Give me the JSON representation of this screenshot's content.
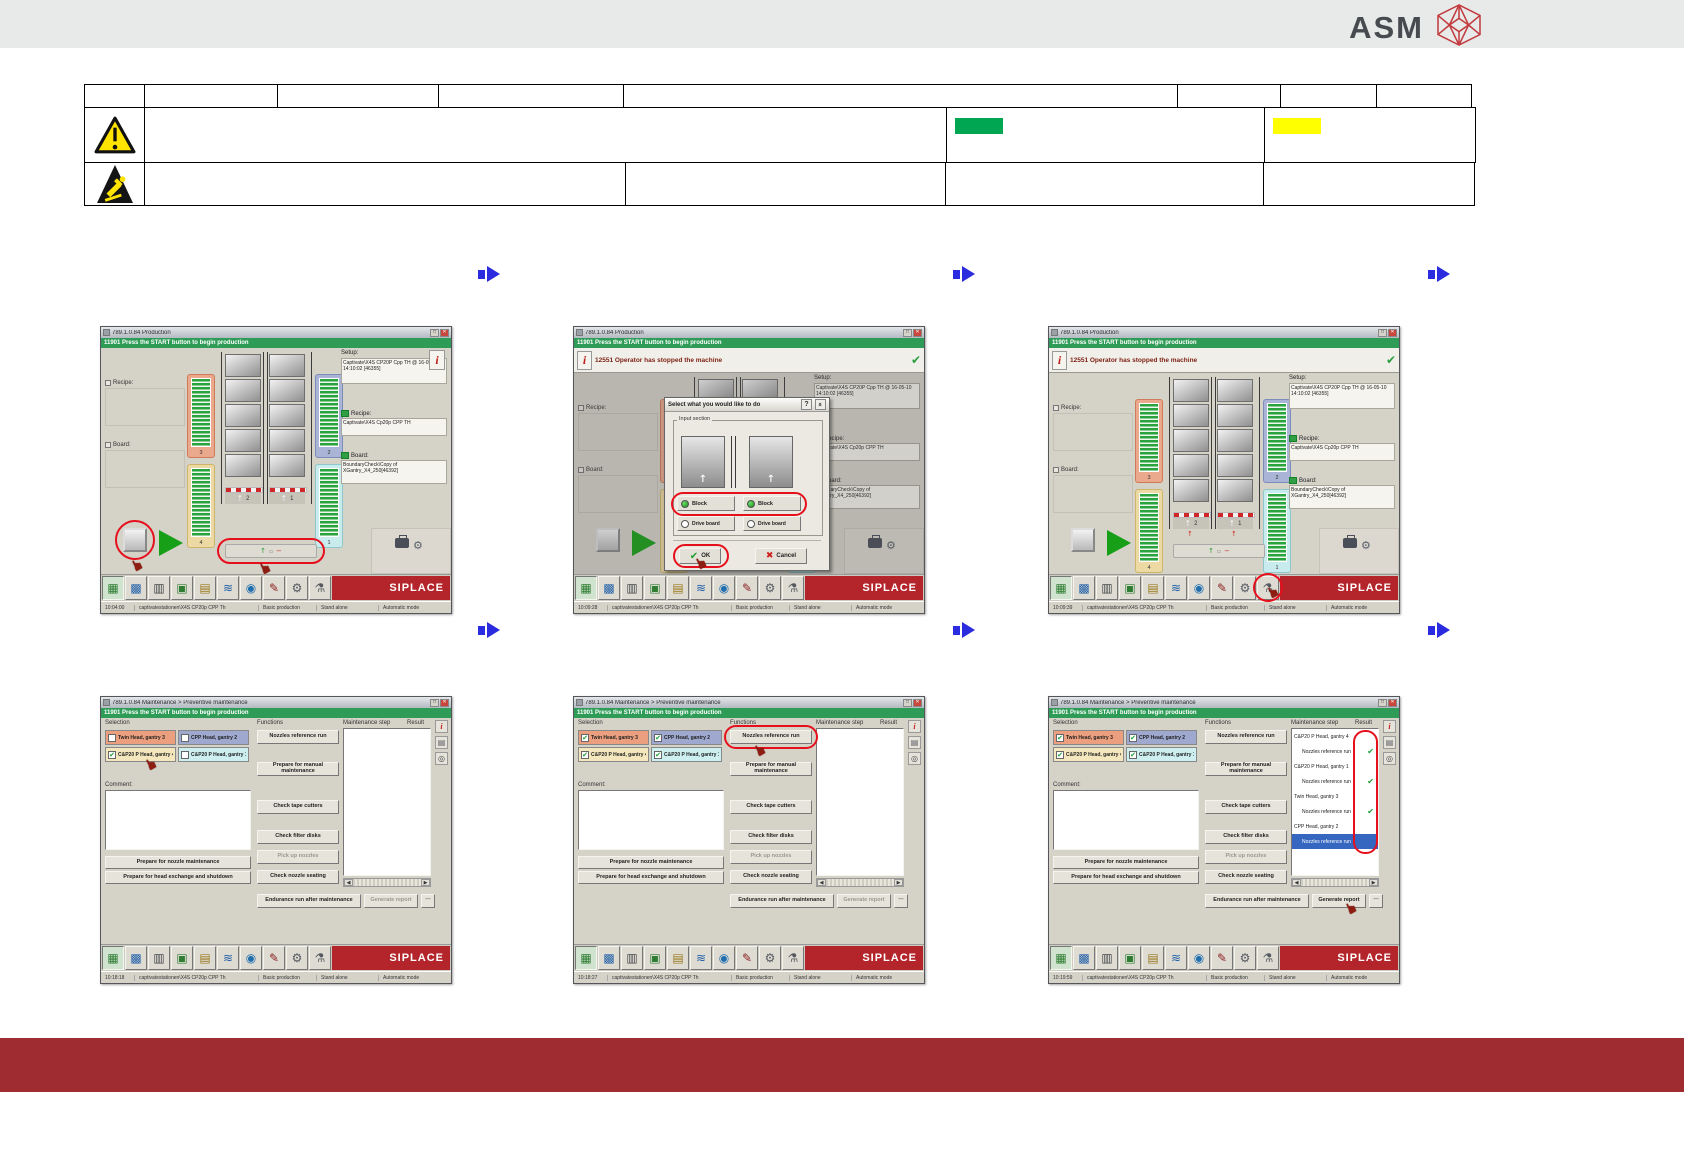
{
  "page": {
    "brand": "ASM"
  },
  "info_table": {
    "header_cells": [
      "",
      "",
      "",
      "",
      "",
      "",
      "",
      ""
    ],
    "warning_row": {
      "icon": "warning-triangle-icon",
      "cells": [
        "",
        "",
        ""
      ],
      "green_swatch": "#00A651",
      "yellow_swatch": "#FFFF00"
    },
    "esd_row": {
      "icon": "esd-warning-icon",
      "cells": [
        "",
        "",
        "",
        ""
      ]
    }
  },
  "flow_arrow_color": "#2B2BDF",
  "shared": {
    "start_msg": "11901 Press the START button to begin production",
    "stopped_msg": "12551 Operator has stopped the machine",
    "siplace": "SIPLACE",
    "window_buttons": {
      "maximize": "□",
      "close": "✕"
    },
    "status": {
      "station": "captivatestationen\\X4S CP20p CPP Th",
      "mode": "Basic production",
      "standalone": "Stand alone",
      "auto": "Automatic mode"
    },
    "labels": {
      "recipe": "Recipe:",
      "board": "Board:",
      "setup": "Setup:"
    },
    "values": {
      "setup": "Captivate\\X4S CP20P Cpp TH @ 16-05-10 14:10:02 [46355]",
      "recipe": "Captivate\\X4S Cp20p CPP TH",
      "board": "BoundaryCheck\\Copy of XGantry_X4_250[46392]"
    },
    "glyphs": {
      "check": "✔",
      "cross": "✖",
      "up": "↑",
      "left": "◀",
      "right": "▶",
      "hand": "☛",
      "info": "i",
      "more": "⋯",
      "gear": "⚙",
      "slot": "▫",
      "dash": "−"
    },
    "banks": [
      {
        "num": "3",
        "border": "#cf7a58",
        "fill": "#eaa98c"
      },
      {
        "num": "4",
        "border": "#cdb56a",
        "fill": "#ecd9a4"
      },
      {
        "num": "2",
        "border": "#7c8cbb",
        "fill": "#a9b4d6"
      },
      {
        "num": "1",
        "border": "#8fc7cc",
        "fill": "#c8ecee"
      }
    ],
    "lanes": [
      "2",
      "1"
    ],
    "toolbar_icons": [
      {
        "name": "station-icon",
        "glyph": "▦",
        "color": "#2e7d32"
      },
      {
        "name": "feeder-grid-icon",
        "glyph": "▩",
        "color": "#1f5fa8"
      },
      {
        "name": "statistics-icon",
        "glyph": "▥",
        "color": "#44474b"
      },
      {
        "name": "pcb-icon",
        "glyph": "▣",
        "color": "#2e7d32"
      },
      {
        "name": "cabinet-icon",
        "glyph": "▤",
        "color": "#9a7b1f"
      },
      {
        "name": "trend-icon",
        "glyph": "≋",
        "color": "#1f5fa8"
      },
      {
        "name": "vision-icon",
        "glyph": "◉",
        "color": "#1f6fae"
      },
      {
        "name": "repair-icon",
        "glyph": "✎",
        "color": "#8b2020"
      },
      {
        "name": "settings-icon",
        "glyph": "⚙",
        "color": "#555a60"
      },
      {
        "name": "maintenance-icon",
        "glyph": "⚗",
        "color": "#555a60"
      }
    ],
    "dialog": {
      "title": "Select what you would like to do",
      "help": "?",
      "collapse": "«",
      "group": "Input section",
      "block": "Block",
      "drive": "Drive board",
      "ok": "OK",
      "cancel": "Cancel"
    },
    "maintenance": {
      "selection": "Selection",
      "functions": "Functions",
      "step": "Maintenance step",
      "result": "Result",
      "comment": "Comment:",
      "sel_buttons": [
        {
          "label": "Twin Head, gantry 3",
          "color": "#eb9f7e"
        },
        {
          "label": "CPP Head, gantry 2",
          "color": "#9fa9d0"
        },
        {
          "label": "C&P20 P Head, gantry 4",
          "color": "#f4e7bd"
        },
        {
          "label": "C&P20 P Head, gantry 1",
          "color": "#cdeff0"
        }
      ],
      "left_buttons": [
        "Prepare for nozzle maintenance",
        "Prepare for head exchange and shutdown"
      ],
      "function_buttons": [
        "Nozzles reference run",
        "Prepare for manual maintenance",
        "Check tape cutters",
        "Check filter disks",
        "Pick up nozzles",
        "Check nozzle seating"
      ],
      "endurance": "Endurance run after maintenance",
      "generate": "Generate report",
      "right_strip": [
        {
          "name": "info-icon",
          "glyph": "i",
          "color": "#c0201c"
        },
        {
          "name": "changeover-icon",
          "glyph": "▤",
          "color": "#555a60"
        },
        {
          "name": "zoom-icon",
          "glyph": "◎",
          "color": "#44474b"
        }
      ]
    }
  },
  "screens": [
    {
      "name": "production-start-screen",
      "type": "production",
      "title": "789.1.0.84 Production",
      "time": "10:04:00",
      "stopped": false,
      "dialog": false,
      "circle_stop": true,
      "circle_conveyor": true
    },
    {
      "name": "production-dialog-screen",
      "type": "production",
      "title": "789.1.0.84 Production",
      "time": "10:09:28",
      "stopped": true,
      "dialog": true
    },
    {
      "name": "production-stopped-screen",
      "type": "production",
      "title": "789.1.0.84 Production",
      "time": "10:09:39",
      "stopped": true,
      "circle_toolbar": true
    },
    {
      "name": "maintenance-selection-screen",
      "type": "maintenance",
      "title": "789.1.0.84 Maintenance > Preventive maintenance",
      "time": "10:18:18",
      "checked": [
        false,
        false,
        true,
        false
      ],
      "hand_selection": true,
      "report_enabled": false,
      "steps": []
    },
    {
      "name": "maintenance-function-screen",
      "type": "maintenance",
      "title": "789.1.0.84 Maintenance > Preventive maintenance",
      "time": "10:18:27",
      "checked": [
        true,
        true,
        true,
        true
      ],
      "circle_function": true,
      "report_enabled": false,
      "steps": []
    },
    {
      "name": "maintenance-result-screen",
      "type": "maintenance",
      "title": "789.1.0.84 Maintenance > Preventive maintenance",
      "time": "10:19:59",
      "checked": [
        true,
        true,
        true,
        true
      ],
      "report_enabled": true,
      "hand_report": true,
      "circle_results": true,
      "steps": [
        {
          "label": "C&P20 P Head, gantry 4",
          "child": false,
          "result": ""
        },
        {
          "label": "Nozzles reference run",
          "child": true,
          "result": "check"
        },
        {
          "label": "C&P20 P Head, gantry 1",
          "child": false,
          "result": ""
        },
        {
          "label": "Nozzles reference run",
          "child": true,
          "result": "check"
        },
        {
          "label": "Twin Head, gantry 3",
          "child": false,
          "result": ""
        },
        {
          "label": "Nozzles reference run",
          "child": true,
          "result": "check"
        },
        {
          "label": "CPP Head, gantry 2",
          "child": false,
          "result": ""
        },
        {
          "label": "Nozzles reference run",
          "child": true,
          "result": "",
          "active": true
        }
      ]
    }
  ]
}
